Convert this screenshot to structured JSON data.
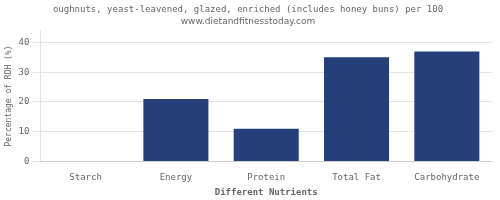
{
  "chart_data": {
    "type": "bar",
    "title": "oughnuts, yeast-leavened, glazed, enriched (includes honey buns) per 100",
    "subtitle": "www.dietandfitnesstoday.com",
    "categories": [
      "Starch",
      "Energy",
      "Protein",
      "Total Fat",
      "Carbohydrate"
    ],
    "values": [
      0,
      21,
      11,
      35,
      37
    ],
    "color": "#253f7a",
    "xlabel": "Different Nutrients",
    "ylabel": "Percentage of RDH (%)",
    "ylim": [
      0,
      44
    ],
    "yticks": [
      0,
      10,
      20,
      30,
      40
    ],
    "grid": "y"
  }
}
